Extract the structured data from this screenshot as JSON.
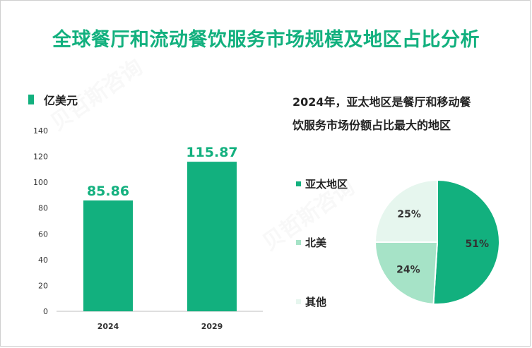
{
  "title": "全球餐厅和流动餐饮服务市场规模及地区占比分析",
  "watermark": "贝哲斯咨询",
  "chart_data": [
    {
      "type": "bar",
      "legend": "亿美元",
      "categories": [
        "2024",
        "2029"
      ],
      "values": [
        85.86,
        115.87
      ],
      "value_labels": [
        "85.86",
        "115.87"
      ],
      "ylim": [
        0,
        140
      ],
      "yticks": [
        "0",
        "20",
        "40",
        "60",
        "80",
        "100",
        "120",
        "140"
      ],
      "color": "#12b07e"
    },
    {
      "type": "pie",
      "title": "2024年，亚太地区是餐厅和移动餐饮服务市场份额占比最大的地区",
      "title_lines": [
        "2024年，亚太地区是餐厅和移动餐",
        "饮服务市场份额占比最大的地区"
      ],
      "labels": [
        "亚太地区",
        "北美",
        "其他"
      ],
      "values": [
        51,
        24,
        25
      ],
      "value_labels": [
        "51%",
        "24%",
        "25%"
      ],
      "colors": [
        "#12b07e",
        "#a6e3c7",
        "#e6f6ee"
      ]
    }
  ]
}
